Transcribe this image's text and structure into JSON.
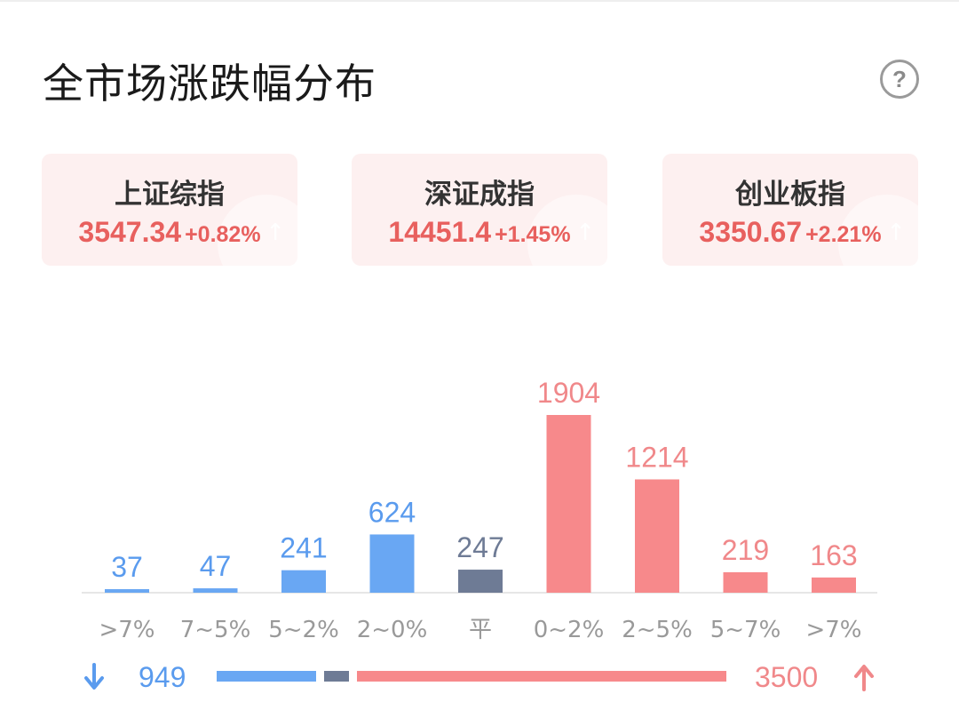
{
  "title": "全市场涨跌幅分布",
  "help_icon": "?",
  "indices": [
    {
      "name": "上证综指",
      "value": "3547.34",
      "change": "+0.82%"
    },
    {
      "name": "深证成指",
      "value": "14451.4",
      "change": "+1.45%"
    },
    {
      "name": "创业板指",
      "value": "3350.67",
      "change": "+2.21%"
    }
  ],
  "colors": {
    "up": "#f7898b",
    "up_text": "#f0888a",
    "down": "#69a7f3",
    "down_text": "#5a9bee",
    "flat": "#6e7b95",
    "card_text": "#e8605e"
  },
  "chart_data": {
    "type": "bar",
    "categories": [
      ">7%",
      "7~5%",
      "5~2%",
      "2~0%",
      "平",
      "0~2%",
      "2~5%",
      "5~7%",
      ">7%"
    ],
    "values": [
      37,
      47,
      241,
      624,
      247,
      1904,
      1214,
      219,
      163
    ],
    "groups": [
      "down",
      "down",
      "down",
      "down",
      "flat",
      "up",
      "up",
      "up",
      "up"
    ],
    "title": "",
    "xlabel": "",
    "ylabel": "",
    "ylim": [
      0,
      1904
    ],
    "grid": false
  },
  "summary": {
    "down_count": "949",
    "flat_count": 247,
    "up_count": "3500"
  }
}
